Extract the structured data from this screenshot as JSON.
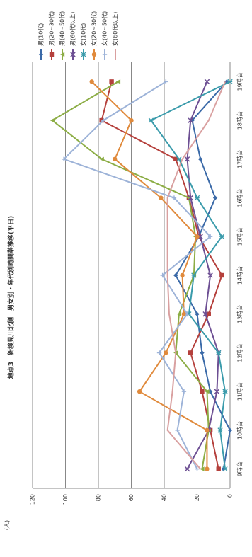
{
  "chart_data": {
    "type": "line",
    "title": "地点3　新検見川北側　男女別・年代別時間帯推移(平日)",
    "y_label": "(人)",
    "categories": [
      "9時台",
      "10時台",
      "11時台",
      "12時台",
      "13時台",
      "14時台",
      "15時台",
      "16時台",
      "17時台",
      "18時台",
      "19時台"
    ],
    "ylim": [
      0,
      120
    ],
    "yticks": [
      0,
      20,
      40,
      60,
      80,
      100,
      120
    ],
    "grid": true,
    "series": [
      {
        "name": "男(10代)",
        "color": "#3b6aa8",
        "marker": "diamond",
        "values": [
          4,
          0,
          12,
          17,
          20,
          33,
          19,
          9,
          18,
          23,
          2
        ]
      },
      {
        "name": "男(20~30代)",
        "color": "#b5403c",
        "marker": "square",
        "values": [
          7,
          12,
          17,
          24,
          13,
          5,
          19,
          25,
          33,
          78,
          72
        ]
      },
      {
        "name": "男(40~50代)",
        "color": "#8cad45",
        "marker": "triangle",
        "values": [
          17,
          13,
          14,
          33,
          31,
          22,
          21,
          25,
          78,
          108,
          68
        ]
      },
      {
        "name": "男(60代以上)",
        "color": "#6d4f93",
        "marker": "x",
        "values": [
          26,
          13,
          8,
          7,
          15,
          12,
          18,
          24,
          26,
          24,
          14
        ]
      },
      {
        "name": "女(10代)",
        "color": "#3a9bab",
        "marker": "star",
        "values": [
          3,
          6,
          3,
          7,
          25,
          22,
          5,
          20,
          31,
          48,
          0
        ]
      },
      {
        "name": "女(20~30代)",
        "color": "#e08a3c",
        "marker": "circle",
        "values": [
          14,
          14,
          55,
          39,
          28,
          29,
          20,
          42,
          70,
          60,
          84
        ]
      },
      {
        "name": "女(40~50代)",
        "color": "#9db3d8",
        "marker": "plus",
        "values": [
          20,
          32,
          28,
          43,
          26,
          41,
          12,
          34,
          101,
          77,
          39
        ]
      },
      {
        "name": "女(60代以上)",
        "color": "#d9a0a0",
        "marker": "none",
        "values": [
          18,
          38,
          35,
          33,
          37,
          38,
          38,
          38,
          29,
          13,
          3
        ]
      }
    ]
  }
}
